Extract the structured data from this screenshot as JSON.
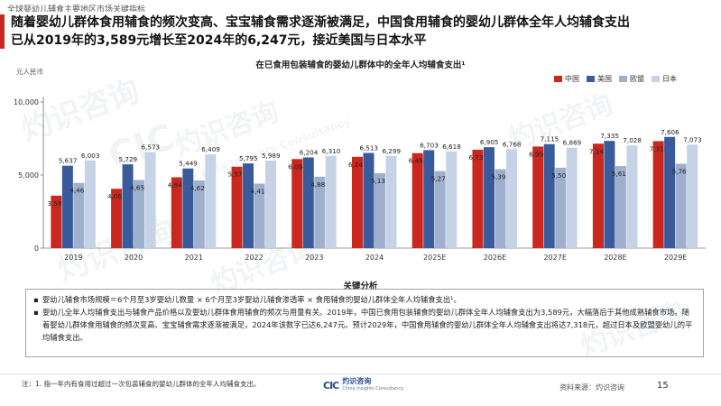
{
  "header": {
    "topline": "全球婴幼儿辅食主要地区市场关键指标",
    "title_line1": "随着婴幼儿群体食用辅食的频次变高、宝宝辅食需求逐渐被满足，中国食用辅食的婴幼儿群体全年人均辅食支出",
    "title_line2": "已从2019年的3,589元增长至2024年的6,247元，接近美国与日本水平"
  },
  "chart_data": {
    "type": "bar",
    "title": "在已食用包装辅食的婴幼儿群体中的全年人均辅食支出¹",
    "unit_label": "元人民币",
    "categories": [
      "2019",
      "2020",
      "2021",
      "2022",
      "2023",
      "2024",
      "2025E",
      "2026E",
      "2027E",
      "2028E",
      "2029E"
    ],
    "series": [
      {
        "name": "中国",
        "color": "#c8281e",
        "values": [
          3589,
          4061,
          4845,
          5571,
          6094,
          6247,
          6498,
          6733,
          6950,
          7145,
          7318
        ]
      },
      {
        "name": "美国",
        "color": "#3a5b9b",
        "values": [
          5637,
          5729,
          5449,
          5795,
          6204,
          6513,
          6703,
          6905,
          7115,
          7335,
          7606
        ]
      },
      {
        "name": "欧盟",
        "color": "#9fb0cf",
        "values": [
          4461,
          4658,
          4629,
          4416,
          4888,
          5131,
          5270,
          5397,
          5501,
          5615,
          5769
        ]
      },
      {
        "name": "日本",
        "color": "#c6d2e6",
        "values": [
          6003,
          6573,
          6409,
          5989,
          6310,
          6299,
          6618,
          6768,
          6869,
          7028,
          7073
        ]
      }
    ],
    "yticks": [
      0,
      5000,
      10000
    ],
    "ytick_labels": [
      "0",
      "5,000",
      "10,000"
    ],
    "ylim": [
      0,
      10000
    ],
    "grid": false,
    "legend": "top-right"
  },
  "analysis": {
    "title": "关键分析",
    "bullets": [
      "婴幼儿辅食市场规模＝6个月至3岁婴幼儿数量 × 6个月至3岁婴幼儿辅食渗透率 × 食用辅食的婴幼儿群体全年人均辅食支出¹。",
      "婴幼儿全年人均辅食支出与辅食产品价格以及婴幼儿群体食用辅食的频次与用量有关。2019年，中国已食用包装辅食的婴幼儿群体全年人均辅食支出为3,589元，大幅落后于其他成熟辅食市场。随着婴幼儿群体食用辅食的频次变高、宝宝辅食需求逐渐被满足，2024年该数字已达6,247元。预计2029年，中国食用辅食的婴幼儿群体全年人均辅食支出将达7,318元，超过日本及欧盟婴幼儿的平均辅食支出。"
    ]
  },
  "footer": {
    "footnote": "注：1. 指一年内有食用过超过一次包装辅食的婴幼儿群体的全年人均辅食支出。",
    "source": "资料来源：灼识咨询",
    "page": "15",
    "logo_mark": "CIC",
    "logo_cn": "灼识咨询",
    "logo_en": "China Insights Consultancy"
  },
  "watermark": {
    "cn": "灼识咨询",
    "en": "China Insights Consultancy",
    "mark": "CIC"
  }
}
